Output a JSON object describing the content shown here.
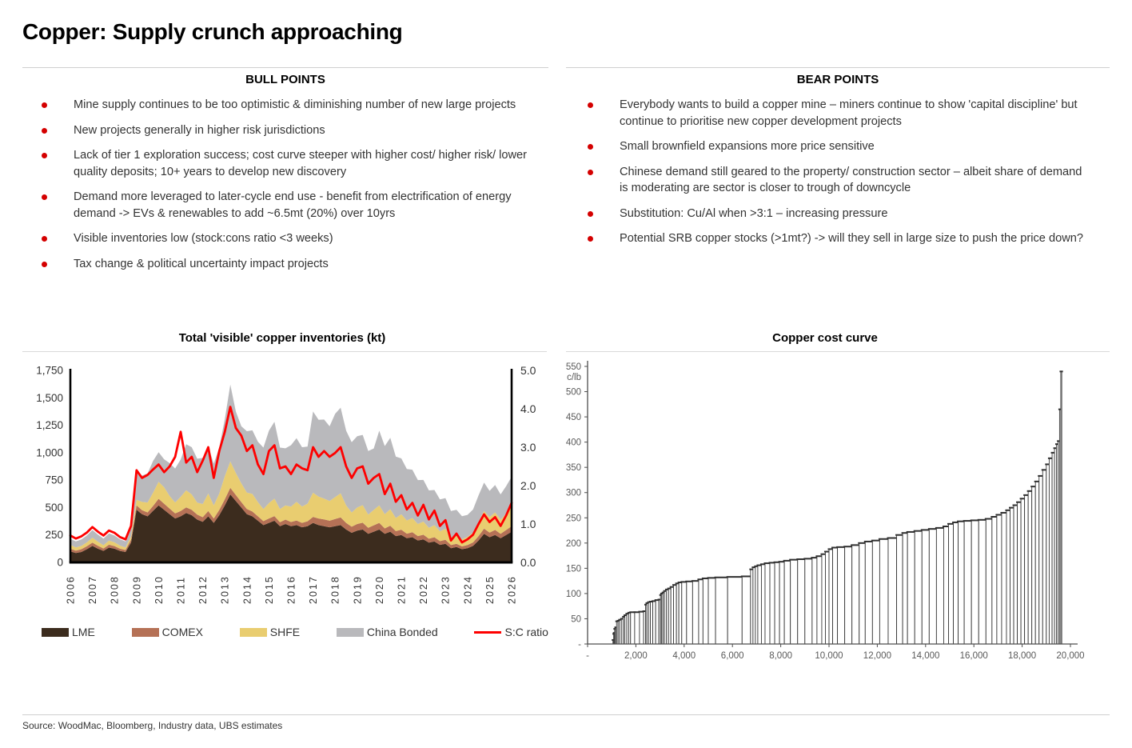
{
  "page": {
    "title": "Copper: Supply crunch approaching",
    "source": "Source: WoodMac, Bloomberg, Industry data, UBS estimates"
  },
  "bull": {
    "heading": "BULL POINTS",
    "items": [
      "Mine supply continues to be too optimistic & diminishing number of new large projects",
      "New projects generally in higher risk jurisdictions",
      "Lack of tier 1 exploration success; cost curve steeper with higher cost/ higher risk/ lower quality deposits; 10+ years to develop new discovery",
      "Demand more leveraged to later-cycle end use - benefit from electrification of energy demand -> EVs & renewables to add ~6.5mt (20%) over 10yrs",
      "Visible inventories low (stock:cons ratio <3 weeks)",
      "Tax change & political uncertainty impact projects"
    ]
  },
  "bear": {
    "heading": "BEAR POINTS",
    "items": [
      "Everybody wants to build a copper mine – miners continue to show 'capital discipline' but continue to prioritise new copper development projects",
      "Small brownfield expansions more price sensitive",
      "Chinese demand still geared to the property/ construction sector – albeit share of demand is moderating are sector is closer to trough of downcycle",
      "Substitution: Cu/Al when >3:1 – increasing pressure",
      "Potential SRB copper stocks (>1mt?) -> will they sell in large size to push the price down?"
    ]
  },
  "colors": {
    "bullet_red": "#d40000",
    "ratio_line": "#fe0000",
    "lme": "#3c2c1e",
    "comex": "#b57156",
    "shfe": "#e9cd70",
    "china_bonded": "#b9b9bc",
    "axis_black": "#000000",
    "axis_gray": "#4d4d4d",
    "tick_text": "#333333",
    "cost_tick_text": "#595959",
    "bar_fill": "#ffffff",
    "bar_stroke": "#3a3a3a"
  },
  "chart_data": [
    {
      "type": "area",
      "title": "Total 'visible' copper inventories (kt)",
      "x_start": 2006,
      "x_step": 0.25,
      "x_points": 81,
      "x_tick_labels": [
        "2006",
        "2007",
        "2008",
        "2009",
        "2010",
        "2011",
        "2012",
        "2013",
        "2014",
        "2015",
        "2016",
        "2017",
        "2018",
        "2019",
        "2020",
        "2021",
        "2022",
        "2023",
        "2024",
        "2025",
        "2026"
      ],
      "left_axis": {
        "min": 0,
        "max": 1750,
        "step": 250
      },
      "right_axis": {
        "min": 0.0,
        "max": 5.0,
        "step": 1.0
      },
      "legend_position": "bottom",
      "series": [
        {
          "name": "LME",
          "axis": "left",
          "style": "area",
          "color_key": "lme",
          "values": [
            100,
            85,
            95,
            120,
            150,
            125,
            105,
            135,
            125,
            105,
            95,
            180,
            480,
            440,
            420,
            470,
            520,
            480,
            440,
            400,
            420,
            450,
            430,
            390,
            370,
            420,
            360,
            430,
            520,
            620,
            560,
            500,
            440,
            420,
            380,
            340,
            360,
            380,
            330,
            350,
            330,
            340,
            320,
            330,
            360,
            340,
            330,
            320,
            330,
            340,
            300,
            270,
            290,
            300,
            260,
            280,
            300,
            260,
            280,
            240,
            250,
            220,
            230,
            200,
            210,
            180,
            190,
            160,
            170,
            130,
            140,
            120,
            130,
            150,
            200,
            260,
            230,
            250,
            220,
            250,
            280
          ]
        },
        {
          "name": "COMEX",
          "axis": "left",
          "style": "area",
          "color_key": "comex",
          "values": [
            25,
            22,
            25,
            28,
            30,
            26,
            22,
            26,
            24,
            20,
            18,
            28,
            40,
            36,
            36,
            45,
            60,
            55,
            50,
            46,
            48,
            52,
            50,
            45,
            42,
            48,
            40,
            48,
            55,
            60,
            55,
            50,
            46,
            44,
            40,
            36,
            40,
            42,
            36,
            40,
            38,
            42,
            40,
            45,
            55,
            60,
            62,
            60,
            65,
            70,
            60,
            55,
            60,
            62,
            55,
            58,
            60,
            50,
            55,
            45,
            48,
            42,
            45,
            40,
            42,
            36,
            40,
            34,
            36,
            28,
            30,
            26,
            28,
            32,
            40,
            48,
            42,
            46,
            40,
            45,
            50
          ]
        },
        {
          "name": "SHFE",
          "axis": "left",
          "style": "area",
          "color_key": "shfe",
          "values": [
            35,
            30,
            30,
            35,
            45,
            38,
            30,
            38,
            34,
            28,
            24,
            30,
            50,
            75,
            90,
            120,
            155,
            150,
            115,
            100,
            130,
            155,
            140,
            110,
            120,
            160,
            120,
            150,
            210,
            240,
            200,
            170,
            150,
            160,
            130,
            110,
            140,
            160,
            120,
            130,
            140,
            170,
            150,
            160,
            220,
            200,
            190,
            180,
            200,
            220,
            160,
            130,
            150,
            160,
            120,
            140,
            160,
            130,
            150,
            120,
            140,
            120,
            130,
            110,
            120,
            100,
            110,
            90,
            100,
            70,
            80,
            65,
            75,
            90,
            130,
            160,
            140,
            160,
            130,
            150,
            180
          ]
        },
        {
          "name": "China Bonded",
          "axis": "left",
          "style": "area",
          "color_key": "china_bonded",
          "values": [
            55,
            55,
            60,
            62,
            70,
            65,
            60,
            65,
            62,
            58,
            55,
            70,
            250,
            240,
            265,
            290,
            270,
            255,
            300,
            310,
            340,
            420,
            430,
            400,
            420,
            430,
            380,
            420,
            520,
            700,
            560,
            520,
            560,
            580,
            550,
            560,
            660,
            700,
            560,
            520,
            560,
            580,
            540,
            520,
            740,
            700,
            720,
            680,
            760,
            780,
            680,
            640,
            650,
            640,
            580,
            560,
            680,
            620,
            650,
            560,
            510,
            470,
            440,
            400,
            380,
            340,
            320,
            290,
            280,
            240,
            230,
            210,
            200,
            210,
            240,
            260,
            240,
            250,
            230,
            250,
            270
          ]
        },
        {
          "name": "S:C ratio",
          "axis": "right",
          "style": "line",
          "color_key": "ratio_line",
          "values": [
            0.7,
            0.62,
            0.68,
            0.78,
            0.92,
            0.8,
            0.7,
            0.83,
            0.77,
            0.66,
            0.6,
            0.95,
            2.4,
            2.2,
            2.28,
            2.42,
            2.55,
            2.35,
            2.5,
            2.75,
            3.4,
            2.6,
            2.75,
            2.35,
            2.65,
            3.0,
            2.2,
            2.9,
            3.4,
            4.05,
            3.5,
            3.3,
            2.9,
            3.05,
            2.55,
            2.3,
            2.9,
            3.05,
            2.45,
            2.5,
            2.3,
            2.55,
            2.45,
            2.4,
            3.0,
            2.75,
            2.9,
            2.75,
            2.85,
            3.0,
            2.5,
            2.2,
            2.45,
            2.5,
            2.05,
            2.2,
            2.3,
            1.78,
            2.05,
            1.58,
            1.75,
            1.38,
            1.55,
            1.22,
            1.5,
            1.12,
            1.35,
            0.95,
            1.1,
            0.57,
            0.75,
            0.52,
            0.6,
            0.72,
            1.0,
            1.25,
            1.05,
            1.18,
            0.95,
            1.22,
            1.55
          ]
        }
      ]
    },
    {
      "type": "bar",
      "title": "Copper cost curve",
      "ylabel": "c/lb",
      "y_axis": {
        "min": 0,
        "max": 550,
        "step": 50,
        "zero_label": "-"
      },
      "x_axis": {
        "min": 0,
        "max": 20000,
        "step": 2000,
        "zero_label": "-"
      },
      "curve_start_kt": 1050,
      "segments": [
        [
          1080,
          8
        ],
        [
          1100,
          20
        ],
        [
          1120,
          22
        ],
        [
          1160,
          30
        ],
        [
          1200,
          33
        ],
        [
          1260,
          45
        ],
        [
          1320,
          46
        ],
        [
          1400,
          48
        ],
        [
          1480,
          50
        ],
        [
          1540,
          54
        ],
        [
          1620,
          57
        ],
        [
          1700,
          60
        ],
        [
          1780,
          62
        ],
        [
          1950,
          63
        ],
        [
          2150,
          63
        ],
        [
          2320,
          64
        ],
        [
          2400,
          65
        ],
        [
          2450,
          78
        ],
        [
          2520,
          81
        ],
        [
          2600,
          83
        ],
        [
          2700,
          84
        ],
        [
          2820,
          85
        ],
        [
          2950,
          87
        ],
        [
          3020,
          88
        ],
        [
          3060,
          97
        ],
        [
          3120,
          100
        ],
        [
          3180,
          102
        ],
        [
          3260,
          105
        ],
        [
          3350,
          108
        ],
        [
          3450,
          110
        ],
        [
          3560,
          113
        ],
        [
          3680,
          117
        ],
        [
          3780,
          120
        ],
        [
          3900,
          122
        ],
        [
          4100,
          123
        ],
        [
          4350,
          124
        ],
        [
          4600,
          125
        ],
        [
          4780,
          128
        ],
        [
          5000,
          130
        ],
        [
          5300,
          131
        ],
        [
          5800,
          132
        ],
        [
          6400,
          133
        ],
        [
          6750,
          134
        ],
        [
          6850,
          148
        ],
        [
          6950,
          152
        ],
        [
          7050,
          154
        ],
        [
          7200,
          156
        ],
        [
          7350,
          158
        ],
        [
          7550,
          160
        ],
        [
          7750,
          161
        ],
        [
          7950,
          162
        ],
        [
          8150,
          163
        ],
        [
          8400,
          165
        ],
        [
          8700,
          167
        ],
        [
          9000,
          168
        ],
        [
          9300,
          169
        ],
        [
          9500,
          171
        ],
        [
          9700,
          174
        ],
        [
          9850,
          178
        ],
        [
          10000,
          183
        ],
        [
          10150,
          188
        ],
        [
          10350,
          191
        ],
        [
          10650,
          192
        ],
        [
          10950,
          193
        ],
        [
          11250,
          196
        ],
        [
          11500,
          200
        ],
        [
          11800,
          203
        ],
        [
          12100,
          205
        ],
        [
          12450,
          208
        ],
        [
          12800,
          210
        ],
        [
          13050,
          216
        ],
        [
          13250,
          220
        ],
        [
          13550,
          222
        ],
        [
          13850,
          224
        ],
        [
          14150,
          226
        ],
        [
          14450,
          228
        ],
        [
          14750,
          230
        ],
        [
          14950,
          233
        ],
        [
          15150,
          238
        ],
        [
          15350,
          241
        ],
        [
          15600,
          243
        ],
        [
          15900,
          244
        ],
        [
          16200,
          245
        ],
        [
          16500,
          246
        ],
        [
          16750,
          248
        ],
        [
          16950,
          252
        ],
        [
          17150,
          256
        ],
        [
          17350,
          260
        ],
        [
          17500,
          265
        ],
        [
          17650,
          270
        ],
        [
          17800,
          275
        ],
        [
          17950,
          281
        ],
        [
          18100,
          288
        ],
        [
          18250,
          295
        ],
        [
          18400,
          303
        ],
        [
          18550,
          312
        ],
        [
          18700,
          322
        ],
        [
          18850,
          333
        ],
        [
          19000,
          345
        ],
        [
          19120,
          356
        ],
        [
          19240,
          368
        ],
        [
          19340,
          379
        ],
        [
          19420,
          388
        ],
        [
          19490,
          396
        ],
        [
          19550,
          402
        ],
        [
          19600,
          465
        ],
        [
          19640,
          540
        ]
      ]
    }
  ]
}
